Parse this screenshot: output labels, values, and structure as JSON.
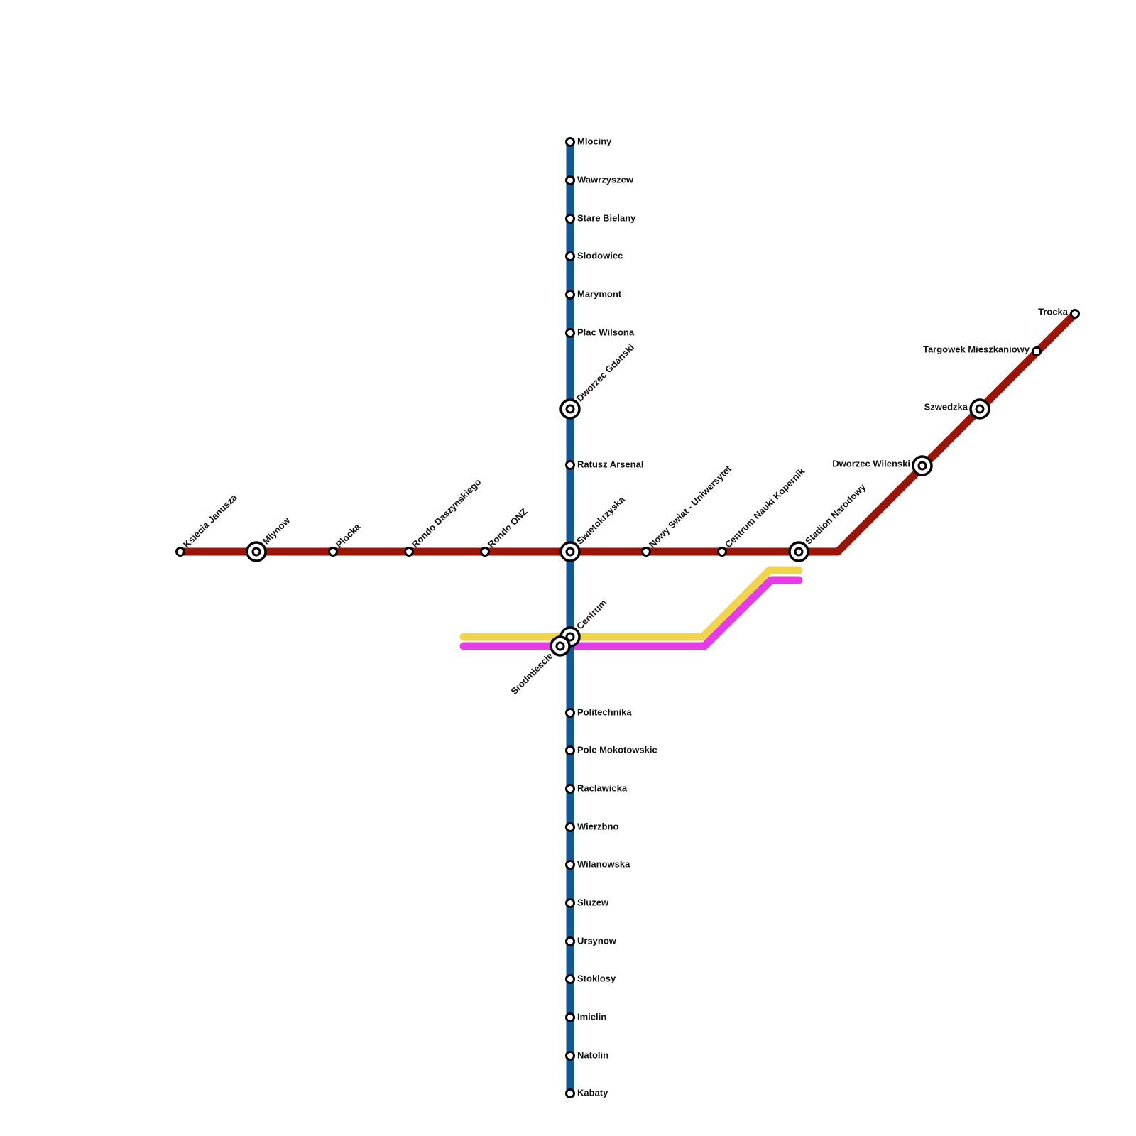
{
  "stations": [
    "Mlociny",
    "Wawrzyszew",
    "Stare Bielany",
    "Slodowiec",
    "Marymont",
    "Plac Wilsona",
    "Dworzec Gdanski",
    "Ratusz Arsenal",
    "Swietokrzyska",
    "Centrum",
    "Politechnika",
    "Pole Mokotowskie",
    "Raclawicka",
    "Wierzbno",
    "Wilanowska",
    "Sluzew",
    "Ursynow",
    "Stoklosy",
    "Imielin",
    "Natolin",
    "Kabaty",
    "Ksiecia Janusza",
    "Mlynow",
    "Plocka",
    "Rondo Daszynskiego",
    "Rondo ONZ",
    "Nowy Swiat - Uniwersytet",
    "Centrum Nauki Kopernik",
    "Stadion Narodowy",
    "Dworzec Wilenski",
    "Szwedzka",
    "Targowek Mieszkaniowy",
    "Trocka",
    "Srodmiescie"
  ]
}
